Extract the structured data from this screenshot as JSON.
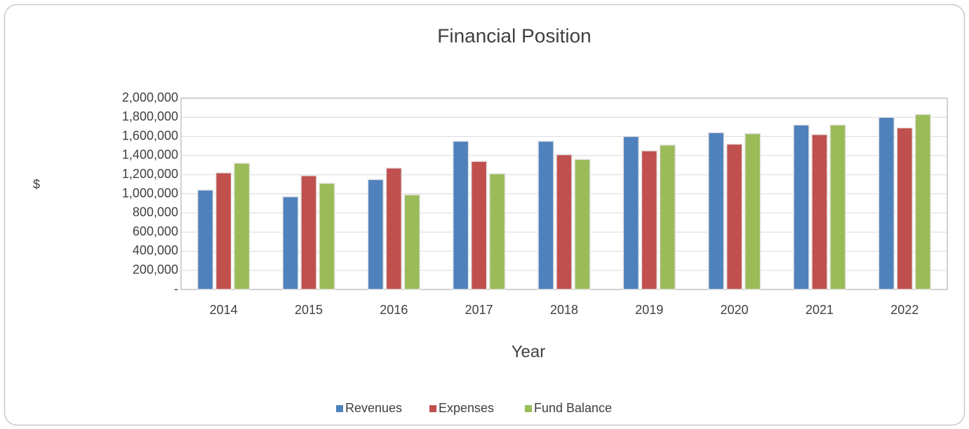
{
  "chart_data": {
    "type": "bar",
    "title": "Financial Position",
    "x_label": "Year",
    "y_label": "$",
    "categories": [
      "2014",
      "2015",
      "2016",
      "2017",
      "2018",
      "2019",
      "2020",
      "2021",
      "2022"
    ],
    "series": [
      {
        "name": "Revenues",
        "color": "#4f81bd",
        "values": [
          1040000,
          970000,
          1150000,
          1550000,
          1550000,
          1600000,
          1640000,
          1720000,
          1800000
        ]
      },
      {
        "name": "Expenses",
        "color": "#c0504d",
        "values": [
          1220000,
          1190000,
          1270000,
          1340000,
          1410000,
          1450000,
          1520000,
          1620000,
          1690000
        ]
      },
      {
        "name": "Fund Balance",
        "color": "#9bbb59",
        "values": [
          1320000,
          1110000,
          990000,
          1210000,
          1360000,
          1510000,
          1630000,
          1720000,
          1830000
        ]
      }
    ],
    "ylim": [
      0,
      2000000
    ],
    "yticks": [
      {
        "value": 0,
        "label": "-"
      },
      {
        "value": 200000,
        "label": "200,000"
      },
      {
        "value": 400000,
        "label": "400,000"
      },
      {
        "value": 600000,
        "label": "600,000"
      },
      {
        "value": 800000,
        "label": "800,000"
      },
      {
        "value": 1000000,
        "label": "1,000,000"
      },
      {
        "value": 1200000,
        "label": "1,200,000"
      },
      {
        "value": 1400000,
        "label": "1,400,000"
      },
      {
        "value": 1600000,
        "label": "1,600,000"
      },
      {
        "value": 1800000,
        "label": "1,800,000"
      },
      {
        "value": 2000000,
        "label": "2,000,000"
      }
    ],
    "grid": true,
    "legend": "bottom"
  }
}
